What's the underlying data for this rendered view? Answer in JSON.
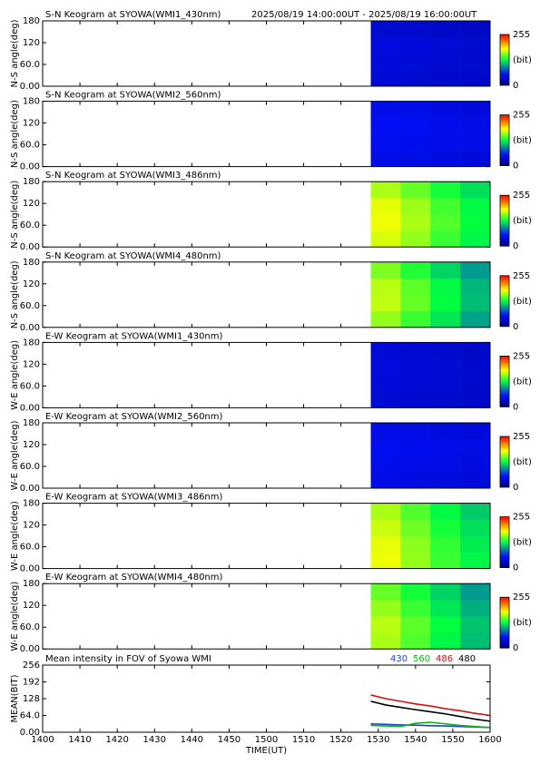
{
  "chart_data": [
    {
      "type": "heatmap",
      "title": "S-N Keogram at SYOWA(WMI1_430nm)",
      "subtitle": "2025/08/19 14:00:00UT - 2025/08/19 16:00:00UT",
      "ylabel": "N-S angle(deg)",
      "xlim": [
        840,
        960
      ],
      "ylim": [
        0,
        180
      ],
      "yticks": [
        {
          "value": 0,
          "label": "0.00"
        },
        {
          "value": 60,
          "label": "60.0"
        },
        120,
        180
      ],
      "x_edges": [
        928,
        936,
        944,
        952,
        960
      ],
      "y_edges": [
        0,
        45,
        90,
        135,
        180
      ],
      "values": [
        [
          38,
          36,
          34,
          33
        ],
        [
          40,
          38,
          36,
          34
        ],
        [
          42,
          40,
          37,
          35
        ],
        [
          36,
          34,
          32,
          30
        ]
      ],
      "clim": [
        0,
        255
      ],
      "cticks": [
        0,
        255
      ],
      "clabel": "(bit)"
    },
    {
      "type": "heatmap",
      "title": "S-N Keogram at SYOWA(WMI2_560nm)",
      "ylabel": "N-S angle(deg)",
      "xlim": [
        840,
        960
      ],
      "ylim": [
        0,
        180
      ],
      "yticks": [
        {
          "value": 0,
          "label": "0.00"
        },
        {
          "value": 60,
          "label": "60.0"
        },
        120,
        180
      ],
      "x_edges": [
        928,
        936,
        944,
        952,
        960
      ],
      "y_edges": [
        0,
        45,
        90,
        135,
        180
      ],
      "values": [
        [
          45,
          44,
          42,
          40
        ],
        [
          50,
          48,
          46,
          44
        ],
        [
          52,
          50,
          47,
          45
        ],
        [
          46,
          44,
          42,
          40
        ]
      ],
      "clim": [
        0,
        255
      ],
      "cticks": [
        0,
        255
      ],
      "clabel": "(bit)"
    },
    {
      "type": "heatmap",
      "title": "S-N Keogram at SYOWA(WMI3_486nm)",
      "ylabel": "N-S angle(deg)",
      "xlim": [
        840,
        960
      ],
      "ylim": [
        0,
        180
      ],
      "yticks": [
        {
          "value": 0,
          "label": "0.00"
        },
        {
          "value": 60,
          "label": "60.0"
        },
        120,
        180
      ],
      "x_edges": [
        928,
        936,
        944,
        952,
        960
      ],
      "y_edges": [
        0,
        45,
        90,
        135,
        180
      ],
      "values": [
        [
          175,
          160,
          140,
          125
        ],
        [
          180,
          165,
          145,
          128
        ],
        [
          178,
          162,
          142,
          126
        ],
        [
          165,
          150,
          132,
          118
        ]
      ],
      "clim": [
        0,
        255
      ],
      "cticks": [
        0,
        255
      ],
      "clabel": "(bit)"
    },
    {
      "type": "heatmap",
      "title": "S-N Keogram at SYOWA(WMI4_480nm)",
      "ylabel": "N-S angle(deg)",
      "xlim": [
        840,
        960
      ],
      "ylim": [
        0,
        180
      ],
      "yticks": [
        {
          "value": 0,
          "label": "0.00"
        },
        {
          "value": 60,
          "label": "60.0"
        },
        120,
        180
      ],
      "x_edges": [
        928,
        936,
        944,
        952,
        960
      ],
      "y_edges": [
        0,
        45,
        90,
        135,
        180
      ],
      "values": [
        [
          160,
          140,
          120,
          100
        ],
        [
          170,
          150,
          128,
          108
        ],
        [
          168,
          148,
          126,
          106
        ],
        [
          155,
          135,
          115,
          98
        ]
      ],
      "clim": [
        0,
        255
      ],
      "cticks": [
        0,
        255
      ],
      "clabel": "(bit)"
    },
    {
      "type": "heatmap",
      "title": "E-W Keogram at SYOWA(WMI1_430nm)",
      "ylabel": "W-E angle(deg)",
      "xlim": [
        840,
        960
      ],
      "ylim": [
        0,
        180
      ],
      "yticks": [
        {
          "value": 0,
          "label": "0.00"
        },
        {
          "value": 60,
          "label": "60.0"
        },
        120,
        180
      ],
      "x_edges": [
        928,
        936,
        944,
        952,
        960
      ],
      "y_edges": [
        0,
        45,
        90,
        135,
        180
      ],
      "values": [
        [
          37,
          35,
          34,
          32
        ],
        [
          40,
          38,
          36,
          34
        ],
        [
          41,
          39,
          37,
          35
        ],
        [
          38,
          36,
          34,
          32
        ]
      ],
      "clim": [
        0,
        255
      ],
      "cticks": [
        0,
        255
      ],
      "clabel": "(bit)"
    },
    {
      "type": "heatmap",
      "title": "E-W Keogram at SYOWA(WMI2_560nm)",
      "ylabel": "W-E angle(deg)",
      "xlim": [
        840,
        960
      ],
      "ylim": [
        0,
        180
      ],
      "yticks": [
        {
          "value": 0,
          "label": "0.00"
        },
        {
          "value": 60,
          "label": "60.0"
        },
        120,
        180
      ],
      "x_edges": [
        928,
        936,
        944,
        952,
        960
      ],
      "y_edges": [
        0,
        45,
        90,
        135,
        180
      ],
      "values": [
        [
          44,
          43,
          41,
          40
        ],
        [
          48,
          46,
          44,
          42
        ],
        [
          50,
          48,
          46,
          44
        ],
        [
          46,
          44,
          42,
          40
        ]
      ],
      "clim": [
        0,
        255
      ],
      "cticks": [
        0,
        255
      ],
      "clabel": "(bit)"
    },
    {
      "type": "heatmap",
      "title": "E-W Keogram at SYOWA(WMI3_486nm)",
      "ylabel": "W-E angle(deg)",
      "xlim": [
        840,
        960
      ],
      "ylim": [
        0,
        180
      ],
      "yticks": [
        {
          "value": 0,
          "label": "0.00"
        },
        {
          "value": 60,
          "label": "60.0"
        },
        120,
        180
      ],
      "x_edges": [
        928,
        936,
        944,
        952,
        960
      ],
      "y_edges": [
        0,
        45,
        90,
        135,
        180
      ],
      "values": [
        [
          180,
          160,
          140,
          125
        ],
        [
          178,
          158,
          138,
          122
        ],
        [
          172,
          152,
          132,
          118
        ],
        [
          165,
          145,
          126,
          112
        ]
      ],
      "clim": [
        0,
        255
      ],
      "cticks": [
        0,
        255
      ],
      "clabel": "(bit)"
    },
    {
      "type": "heatmap",
      "title": "E-W Keogram at SYOWA(WMI4_480nm)",
      "ylabel": "W-E angle(deg)",
      "xlim": [
        840,
        960
      ],
      "ylim": [
        0,
        180
      ],
      "yticks": [
        {
          "value": 0,
          "label": "0.00"
        },
        {
          "value": 60,
          "label": "60.0"
        },
        120,
        180
      ],
      "x_edges": [
        928,
        936,
        944,
        952,
        960
      ],
      "y_edges": [
        0,
        45,
        90,
        135,
        180
      ],
      "values": [
        [
          165,
          145,
          125,
          108
        ],
        [
          168,
          148,
          128,
          110
        ],
        [
          160,
          140,
          120,
          104
        ],
        [
          150,
          132,
          114,
          98
        ]
      ],
      "clim": [
        0,
        255
      ],
      "cticks": [
        0,
        255
      ],
      "clabel": "(bit)"
    },
    {
      "type": "line",
      "title": "Mean intensity in FOV of Syowa WMI",
      "ylabel": "MEAN(BIT)",
      "xlabel": "TIME(UT)",
      "xlim": [
        840,
        960
      ],
      "xticks": [
        {
          "value": 840,
          "label": "1400"
        },
        {
          "value": 850,
          "label": "1410"
        },
        {
          "value": 860,
          "label": "1420"
        },
        {
          "value": 870,
          "label": "1430"
        },
        {
          "value": 880,
          "label": "1440"
        },
        {
          "value": 890,
          "label": "1450"
        },
        {
          "value": 900,
          "label": "1500"
        },
        {
          "value": 910,
          "label": "1510"
        },
        {
          "value": 920,
          "label": "1520"
        },
        {
          "value": 930,
          "label": "1530"
        },
        {
          "value": 940,
          "label": "1540"
        },
        {
          "value": 950,
          "label": "1550"
        },
        {
          "value": 960,
          "label": "1600"
        }
      ],
      "ylim": [
        0,
        256
      ],
      "yticks": [
        {
          "value": 0,
          "label": "0.00"
        },
        {
          "value": 64,
          "label": "64.0"
        },
        128,
        192,
        256
      ],
      "x": [
        928,
        932,
        936,
        940,
        944,
        948,
        952,
        956,
        960
      ],
      "series": [
        {
          "name": "430",
          "color": "#1f3fd0",
          "values": [
            32,
            30,
            28,
            27,
            25,
            24,
            22,
            20,
            18
          ]
        },
        {
          "name": "560",
          "color": "#10b020",
          "values": [
            26,
            24,
            22,
            34,
            38,
            32,
            26,
            22,
            18
          ]
        },
        {
          "name": "486",
          "color": "#d01010",
          "values": [
            142,
            128,
            118,
            108,
            100,
            90,
            82,
            72,
            64
          ]
        },
        {
          "name": "480",
          "color": "#000000",
          "values": [
            118,
            104,
            95,
            86,
            78,
            70,
            60,
            50,
            42
          ]
        }
      ]
    }
  ]
}
